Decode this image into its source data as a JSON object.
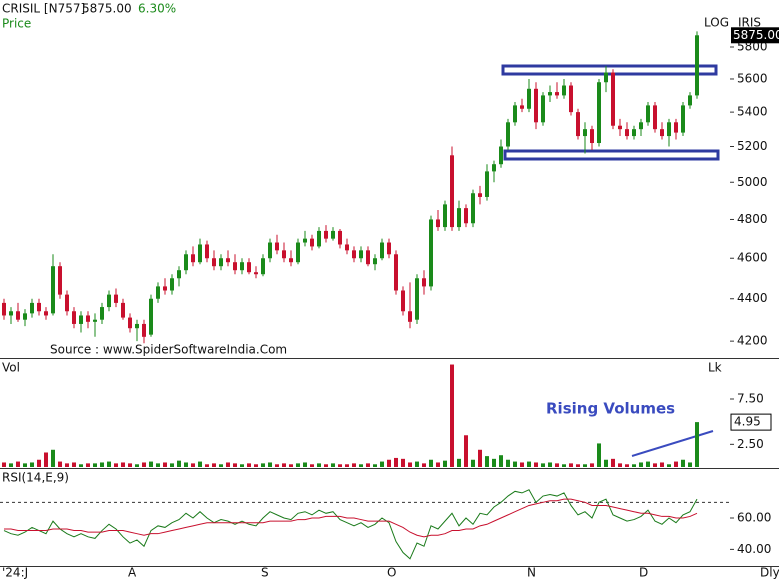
{
  "header": {
    "symbol": "CRISIL [N757]",
    "last_price": "5875.00",
    "change": "6.30%",
    "price_label": "Price",
    "source": "Source : www.SpiderSoftwareIndia.Com",
    "log_label": "LOG",
    "iris_label": "IRIS",
    "period": "Dly"
  },
  "chart_data": [
    {
      "type": "candlestick",
      "up_color": "#1a8a1a",
      "down_color": "#c8102e",
      "log_scale": true,
      "categories": [
        "'24:J",
        null,
        null,
        null,
        null,
        null,
        null,
        null,
        null,
        null,
        null,
        null,
        null,
        null,
        null,
        null,
        null,
        null,
        "A",
        null,
        null,
        null,
        null,
        null,
        null,
        null,
        null,
        null,
        null,
        null,
        null,
        null,
        null,
        null,
        null,
        null,
        null,
        "S",
        null,
        null,
        null,
        null,
        null,
        null,
        null,
        null,
        null,
        null,
        null,
        null,
        null,
        null,
        null,
        null,
        null,
        "O",
        null,
        null,
        null,
        null,
        null,
        null,
        null,
        null,
        null,
        null,
        null,
        null,
        null,
        null,
        null,
        null,
        null,
        null,
        null,
        "N",
        null,
        null,
        null,
        null,
        null,
        null,
        null,
        null,
        null,
        null,
        null,
        null,
        null,
        null,
        null,
        "D",
        null,
        null,
        null,
        null,
        null,
        null,
        null,
        null
      ],
      "open": [
        4380,
        4320,
        4340,
        4300,
        4330,
        4380,
        4340,
        4330,
        4560,
        4420,
        4340,
        4280,
        4320,
        4290,
        4300,
        4360,
        4420,
        4380,
        4310,
        4260,
        4280,
        4230,
        4400,
        4460,
        4440,
        4500,
        4540,
        4620,
        4580,
        4670,
        4600,
        4560,
        4600,
        4580,
        4540,
        4580,
        4530,
        4520,
        4600,
        4680,
        4640,
        4600,
        4580,
        4680,
        4700,
        4660,
        4740,
        4700,
        4740,
        4670,
        4640,
        4600,
        4640,
        4570,
        4600,
        4680,
        4620,
        4440,
        4340,
        4300,
        4500,
        4460,
        4800,
        4760,
        5150,
        4760,
        4860,
        4780,
        4940,
        4920,
        5060,
        5100,
        5200,
        5340,
        5440,
        5420,
        5540,
        5340,
        5500,
        5520,
        5500,
        5560,
        5400,
        5260,
        5300,
        5220,
        5580,
        5640,
        5320,
        5300,
        5260,
        5300,
        5340,
        5440,
        5300,
        5260,
        5340,
        5280,
        5440,
        5500
      ],
      "high": [
        4400,
        4360,
        4380,
        4350,
        4400,
        4400,
        4360,
        4620,
        4580,
        4440,
        4360,
        4340,
        4340,
        4330,
        4380,
        4440,
        4450,
        4400,
        4330,
        4300,
        4300,
        4420,
        4480,
        4500,
        4520,
        4560,
        4640,
        4660,
        4700,
        4690,
        4640,
        4620,
        4640,
        4620,
        4600,
        4600,
        4560,
        4620,
        4700,
        4720,
        4680,
        4640,
        4700,
        4740,
        4720,
        4760,
        4770,
        4760,
        4750,
        4700,
        4660,
        4660,
        4660,
        4620,
        4700,
        4700,
        4640,
        4460,
        4480,
        4520,
        4540,
        4820,
        4850,
        4900,
        5200,
        4900,
        4880,
        4960,
        4980,
        5100,
        5120,
        5240,
        5360,
        5460,
        5480,
        5600,
        5580,
        5520,
        5560,
        5580,
        5600,
        5580,
        5420,
        5340,
        5320,
        5600,
        5680,
        5660,
        5360,
        5340,
        5320,
        5360,
        5460,
        5460,
        5340,
        5360,
        5360,
        5460,
        5520,
        5900
      ],
      "low": [
        4300,
        4280,
        4290,
        4270,
        4310,
        4320,
        4300,
        4320,
        4400,
        4320,
        4260,
        4240,
        4260,
        4220,
        4280,
        4340,
        4360,
        4300,
        4240,
        4200,
        4190,
        4220,
        4380,
        4420,
        4420,
        4460,
        4520,
        4560,
        4570,
        4580,
        4540,
        4540,
        4560,
        4520,
        4520,
        4520,
        4500,
        4510,
        4580,
        4620,
        4580,
        4560,
        4570,
        4660,
        4640,
        4650,
        4680,
        4690,
        4650,
        4620,
        4580,
        4580,
        4560,
        4540,
        4590,
        4600,
        4420,
        4320,
        4260,
        4280,
        4420,
        4440,
        4740,
        4740,
        4740,
        4740,
        4760,
        4760,
        4880,
        4900,
        5000,
        5080,
        5180,
        5320,
        5400,
        5400,
        5300,
        5320,
        5460,
        5480,
        5480,
        5380,
        5240,
        5160,
        5180,
        5200,
        5520,
        5300,
        5260,
        5240,
        5240,
        5260,
        5320,
        5280,
        5240,
        5200,
        5240,
        5260,
        5420,
        5480
      ],
      "close": [
        4320,
        4340,
        4300,
        4330,
        4380,
        4340,
        4320,
        4560,
        4420,
        4340,
        4280,
        4320,
        4290,
        4300,
        4360,
        4420,
        4380,
        4310,
        4260,
        4280,
        4220,
        4400,
        4460,
        4440,
        4500,
        4540,
        4620,
        4580,
        4670,
        4600,
        4560,
        4600,
        4580,
        4540,
        4580,
        4530,
        4520,
        4600,
        4680,
        4640,
        4600,
        4580,
        4680,
        4700,
        4660,
        4740,
        4700,
        4740,
        4670,
        4640,
        4600,
        4640,
        4570,
        4600,
        4680,
        4620,
        4440,
        4340,
        4290,
        4500,
        4460,
        4800,
        4760,
        4880,
        4760,
        4860,
        4780,
        4940,
        4920,
        5060,
        5100,
        5200,
        5340,
        5440,
        5420,
        5540,
        5340,
        5500,
        5520,
        5500,
        5560,
        5400,
        5260,
        5300,
        5220,
        5580,
        5640,
        5320,
        5300,
        5260,
        5300,
        5340,
        5440,
        5300,
        5260,
        5340,
        5280,
        5440,
        5500,
        5875
      ],
      "ylim": [
        4123,
        6107
      ],
      "yticks": [
        4200,
        4400,
        4600,
        4800,
        5000,
        5200,
        5400,
        5600,
        5800
      ],
      "last_value": 5875,
      "last_value_label": "5875.00"
    },
    {
      "type": "bar",
      "label": "Vol",
      "unit": "Lk",
      "annotation": "Rising Volumes",
      "values": [
        0.5,
        0.4,
        0.6,
        0.4,
        0.5,
        0.8,
        1.6,
        1.9,
        0.6,
        0.4,
        0.5,
        0.3,
        0.4,
        0.4,
        0.5,
        0.6,
        0.4,
        0.5,
        0.4,
        0.3,
        0.5,
        0.6,
        0.4,
        0.5,
        0.4,
        0.7,
        0.5,
        0.4,
        0.6,
        0.3,
        0.4,
        0.3,
        0.5,
        0.4,
        0.3,
        0.4,
        0.3,
        0.4,
        0.5,
        0.3,
        0.4,
        0.3,
        0.4,
        0.5,
        0.3,
        0.4,
        0.3,
        0.4,
        0.3,
        0.3,
        0.4,
        0.3,
        0.4,
        0.3,
        0.6,
        0.8,
        1.0,
        0.9,
        0.5,
        0.6,
        0.4,
        0.8,
        0.5,
        0.7,
        11.3,
        0.9,
        3.5,
        0.8,
        1.9,
        1.2,
        0.9,
        1.3,
        0.8,
        0.6,
        0.5,
        0.6,
        0.5,
        0.4,
        0.5,
        0.4,
        0.3,
        0.4,
        0.3,
        0.3,
        0.4,
        2.6,
        0.8,
        0.9,
        0.4,
        0.3,
        0.3,
        0.5,
        0.6,
        0.4,
        0.5,
        0.3,
        0.6,
        0.8,
        0.5,
        4.95
      ],
      "ylim": [
        0,
        11.8
      ],
      "yticks": [
        {
          "value": 2.5,
          "label": "2.50"
        },
        {
          "value": 7.5,
          "label": "7.50"
        }
      ],
      "last_value": 4.95,
      "last_value_label": "4.95"
    },
    {
      "type": "line",
      "label": "RSI(14,E,9)",
      "reference_level": 70,
      "series": [
        {
          "color": "#1a7a1a",
          "values": [
            52,
            50,
            49,
            51,
            54,
            52,
            50,
            58,
            53,
            50,
            48,
            50,
            48,
            47,
            52,
            56,
            53,
            48,
            44,
            46,
            42,
            52,
            55,
            54,
            57,
            59,
            63,
            60,
            64,
            60,
            57,
            59,
            58,
            56,
            58,
            56,
            55,
            60,
            64,
            62,
            60,
            59,
            63,
            64,
            62,
            65,
            63,
            64,
            59,
            57,
            55,
            57,
            54,
            56,
            60,
            57,
            45,
            38,
            34,
            44,
            42,
            55,
            53,
            58,
            63,
            55,
            60,
            56,
            63,
            62,
            67,
            70,
            74,
            77,
            76,
            78,
            70,
            74,
            75,
            74,
            76,
            68,
            62,
            64,
            60,
            70,
            72,
            62,
            60,
            58,
            59,
            61,
            65,
            58,
            56,
            60,
            57,
            62,
            64,
            72
          ]
        },
        {
          "color": "#c8102e",
          "values": [
            53,
            53,
            52,
            52,
            52,
            52,
            52,
            53,
            53,
            53,
            52,
            52,
            51,
            51,
            51,
            52,
            52,
            52,
            51,
            50,
            49,
            50,
            50,
            51,
            52,
            53,
            54,
            55,
            56,
            57,
            57,
            57,
            57,
            57,
            57,
            57,
            57,
            57,
            58,
            58,
            58,
            58,
            59,
            59,
            60,
            60,
            61,
            61,
            61,
            60,
            60,
            59,
            58,
            58,
            58,
            58,
            56,
            54,
            51,
            49,
            48,
            49,
            49,
            50,
            52,
            52,
            53,
            53,
            55,
            56,
            58,
            60,
            62,
            64,
            66,
            68,
            69,
            70,
            71,
            71,
            72,
            72,
            71,
            70,
            68,
            68,
            68,
            67,
            66,
            65,
            64,
            63,
            63,
            62,
            61,
            61,
            60,
            60,
            61,
            63
          ]
        }
      ],
      "ylim": [
        29.4,
        90.6
      ],
      "yticks": [
        {
          "value": 40,
          "label": "40.00"
        },
        {
          "value": 60,
          "label": "60.00"
        }
      ]
    }
  ]
}
